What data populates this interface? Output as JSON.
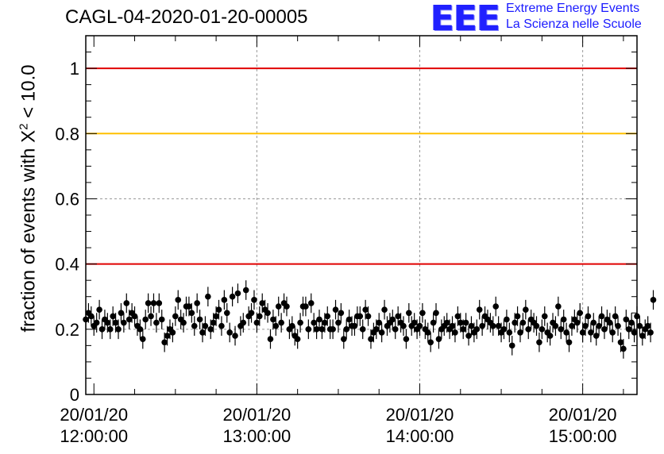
{
  "title": "CAGL-04-2020-01-20-00005",
  "logo": {
    "mark": "EEE",
    "line1": "Extreme Energy Events",
    "line2": "La Scienza nelle Scuole"
  },
  "colors": {
    "red_line": "#e00000",
    "yellow_line": "#ffc000",
    "marker": "#000000",
    "logo_blue": "#2020ff"
  },
  "chart_data": {
    "type": "scatter",
    "title": "CAGL-04-2020-01-20-00005",
    "ylabel_text": "fraction of events with X",
    "ylabel_sup": "2",
    "ylabel_suffix": " < 10.0",
    "xlabel": "",
    "ylim": [
      0,
      1.1
    ],
    "xlim": [
      "2020-01-20 11:57:00",
      "2020-01-20 15:20:00"
    ],
    "yticks": [
      "0",
      "0.2",
      "0.4",
      "0.6",
      "0.8",
      "1"
    ],
    "xticks": [
      {
        "date": "20/01/20",
        "time": "12:00:00"
      },
      {
        "date": "20/01/20",
        "time": "13:00:00"
      },
      {
        "date": "20/01/20",
        "time": "14:00:00"
      },
      {
        "date": "20/01/20",
        "time": "15:00:00"
      }
    ],
    "grid": true,
    "reference_lines": [
      {
        "y": 1.0,
        "color": "red"
      },
      {
        "y": 0.8,
        "color": "yellow"
      },
      {
        "y": 0.4,
        "color": "red"
      }
    ],
    "x_start": "2020-01-20 11:57:00",
    "x_step_minutes": 1,
    "error": 0.03,
    "series": [
      {
        "values": [
          0.23,
          0.25,
          0.24,
          0.21,
          0.22,
          0.26,
          0.2,
          0.23,
          0.22,
          0.2,
          0.24,
          0.22,
          0.2,
          0.25,
          0.22,
          0.28,
          0.23,
          0.25,
          0.24,
          0.21,
          0.2,
          0.17,
          0.23,
          0.28,
          0.24,
          0.28,
          0.22,
          0.28,
          0.23,
          0.16,
          0.18,
          0.2,
          0.19,
          0.24,
          0.29,
          0.23,
          0.22,
          0.27,
          0.27,
          0.25,
          0.21,
          0.28,
          0.23,
          0.19,
          0.21,
          0.3,
          0.2,
          0.22,
          0.24,
          0.26,
          0.21,
          0.29,
          0.25,
          0.19,
          0.3,
          0.18,
          0.31,
          0.21,
          0.22,
          0.32,
          0.24,
          0.25,
          0.29,
          0.22,
          0.24,
          0.28,
          0.26,
          0.25,
          0.17,
          0.23,
          0.21,
          0.27,
          0.22,
          0.28,
          0.27,
          0.2,
          0.21,
          0.18,
          0.17,
          0.22,
          0.27,
          0.27,
          0.2,
          0.28,
          0.22,
          0.2,
          0.23,
          0.2,
          0.22,
          0.24,
          0.2,
          0.2,
          0.26,
          0.22,
          0.25,
          0.17,
          0.2,
          0.23,
          0.21,
          0.21,
          0.24,
          0.24,
          0.2,
          0.26,
          0.24,
          0.17,
          0.19,
          0.2,
          0.22,
          0.19,
          0.26,
          0.21,
          0.22,
          0.23,
          0.2,
          0.24,
          0.22,
          0.21,
          0.17,
          0.25,
          0.21,
          0.22,
          0.2,
          0.21,
          0.25,
          0.2,
          0.19,
          0.16,
          0.22,
          0.25,
          0.17,
          0.2,
          0.21,
          0.22,
          0.2,
          0.21,
          0.19,
          0.24,
          0.22,
          0.2,
          0.22,
          0.18,
          0.21,
          0.19,
          0.2,
          0.26,
          0.21,
          0.24,
          0.23,
          0.22,
          0.21,
          0.27,
          0.21,
          0.19,
          0.2,
          0.23,
          0.19,
          0.15,
          0.22,
          0.24,
          0.19,
          0.22,
          0.26,
          0.2,
          0.23,
          0.22,
          0.21,
          0.16,
          0.2,
          0.24,
          0.19,
          0.18,
          0.22,
          0.21,
          0.27,
          0.2,
          0.23,
          0.19,
          0.16,
          0.21,
          0.23,
          0.22,
          0.25,
          0.19,
          0.21,
          0.24,
          0.19,
          0.22,
          0.18,
          0.21,
          0.24,
          0.2,
          0.23,
          0.22,
          0.19,
          0.24,
          0.21,
          0.16,
          0.14,
          0.23,
          0.2,
          0.22,
          0.19,
          0.24,
          0.21,
          0.18,
          0.2,
          0.21,
          0.19,
          0.29
        ]
      }
    ]
  }
}
